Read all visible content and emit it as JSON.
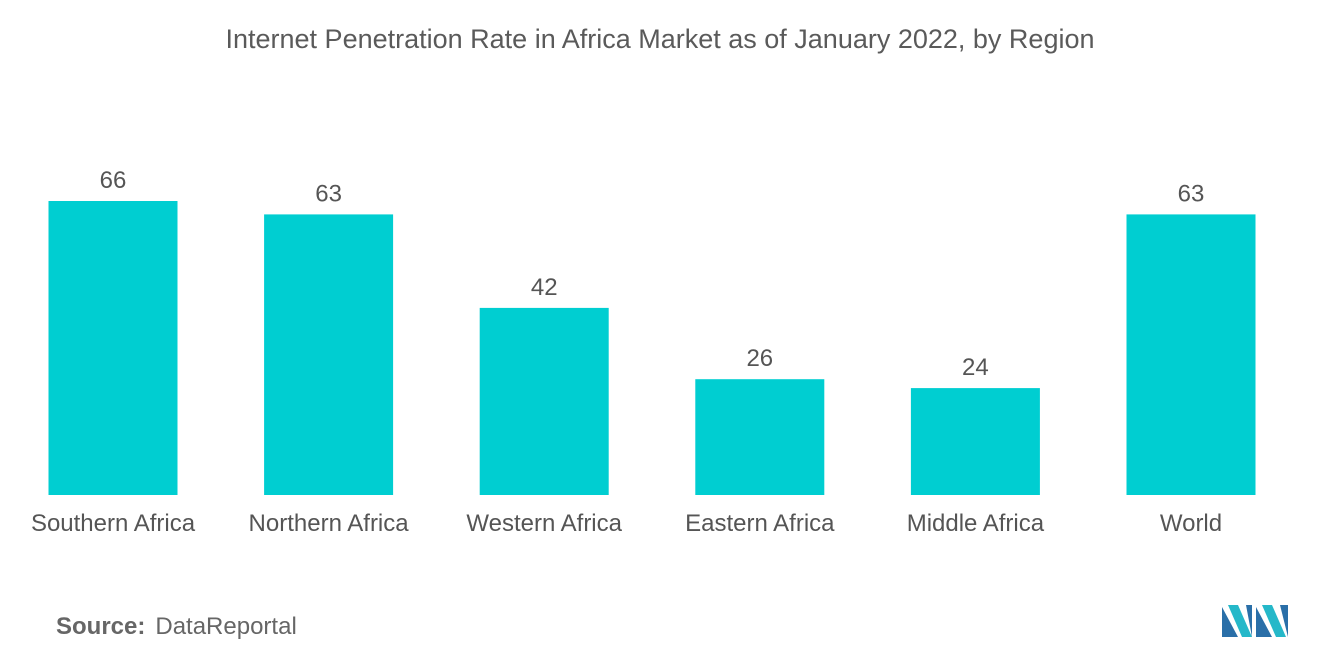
{
  "chart_data": {
    "type": "bar",
    "title": "Internet Penetration Rate in Africa Market as of January 2022, by Region",
    "categories": [
      "Southern Africa",
      "Northern Africa",
      "Western Africa",
      "Eastern Africa",
      "Middle Africa",
      "World"
    ],
    "values": [
      66,
      63,
      42,
      26,
      24,
      63
    ],
    "data_labels": [
      "66",
      "63",
      "42",
      "26",
      "24",
      "63"
    ],
    "xlabel": "",
    "ylabel": "",
    "ylim": [
      0,
      66
    ],
    "grid": false,
    "legend": "none",
    "bar_color": "#00ced1"
  },
  "source": {
    "label": "Source:",
    "value": "DataReportal"
  },
  "logo": {
    "icon": "mordor-intelligence-logo-icon",
    "colors": [
      "#2a6fa8",
      "#25b8c9"
    ]
  }
}
